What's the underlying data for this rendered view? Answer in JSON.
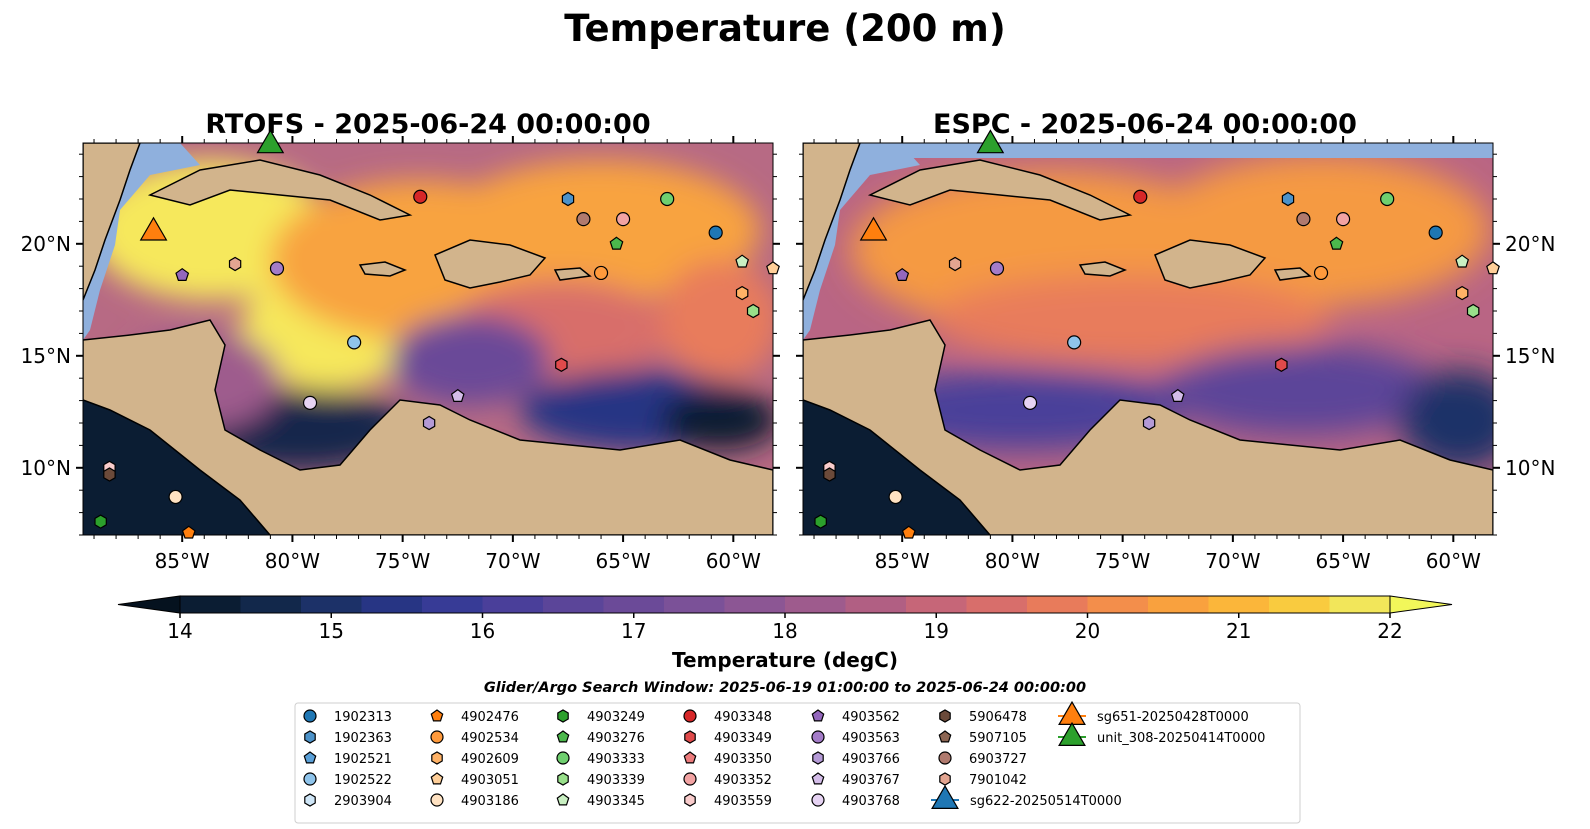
{
  "figure": {
    "suptitle": "Temperature (200 m)",
    "colorbar_label": "Temperature (degC)",
    "search_window": "Glider/Argo Search Window: 2025-06-19 01:00:00 to 2025-06-24 00:00:00"
  },
  "chart_data": {
    "type": "heatmap",
    "panels": [
      {
        "title": "RTOFS - 2025-06-24 00:00:00"
      },
      {
        "title": "ESPC - 2025-06-24 00:00:00"
      }
    ],
    "lon_range": [
      -89.5,
      -58.2
    ],
    "lat_range": [
      7.0,
      24.5
    ],
    "lon_ticks": [
      "85°W",
      "80°W",
      "75°W",
      "70°W",
      "65°W",
      "60°W"
    ],
    "lon_tick_values": [
      -85,
      -80,
      -75,
      -70,
      -65,
      -60
    ],
    "lat_ticks": [
      "10°N",
      "15°N",
      "20°N"
    ],
    "lat_tick_values": [
      10,
      15,
      20
    ],
    "colorbar": {
      "vmin": 14,
      "vmax": 22,
      "step": 0.5,
      "extend": "both",
      "tick_labels": [
        "14",
        "15",
        "16",
        "17",
        "18",
        "19",
        "20",
        "21",
        "22"
      ],
      "colors": [
        "#0b1d33",
        "#12284b",
        "#1c3168",
        "#273584",
        "#373b96",
        "#4a3f9a",
        "#5b4599",
        "#6b4a98",
        "#7b5198",
        "#8c5694",
        "#9e5b8d",
        "#b15f83",
        "#c66678",
        "#d86e6b",
        "#e87b5b",
        "#f38e4b",
        "#f9a13e",
        "#fbb63a",
        "#f9cb3f",
        "#f2e65a"
      ],
      "under_color": "#05121f",
      "over_color": "#f2f75a"
    },
    "floats": [
      {
        "name": "1902313",
        "marker": "circle",
        "color": "#1f77b4",
        "lon": -60.8,
        "lat": 20.5
      },
      {
        "name": "1902363",
        "marker": "hexagon",
        "color": "#4c92c9",
        "lon": -67.5,
        "lat": 22.0
      },
      {
        "name": "1902521",
        "marker": "pentagon",
        "color": "#5aa0d8",
        "lon": null,
        "lat": null
      },
      {
        "name": "1902522",
        "marker": "circle",
        "color": "#8fc4eb",
        "lon": -77.2,
        "lat": 15.6
      },
      {
        "name": "2903904",
        "marker": "hexagon",
        "color": "#cfe6f7",
        "lon": null,
        "lat": null
      },
      {
        "name": "4902476",
        "marker": "pentagon",
        "color": "#ff7f0e",
        "lon": -84.7,
        "lat": 7.1
      },
      {
        "name": "4902534",
        "marker": "circle",
        "color": "#ff9a3c",
        "lon": -66.0,
        "lat": 18.7
      },
      {
        "name": "4902609",
        "marker": "hexagon",
        "color": "#ffb266",
        "lon": -59.6,
        "lat": 17.8
      },
      {
        "name": "4903051",
        "marker": "pentagon",
        "color": "#ffcf99",
        "lon": -58.2,
        "lat": 18.9
      },
      {
        "name": "4903186",
        "marker": "circle",
        "color": "#ffe2c2",
        "lon": -85.3,
        "lat": 8.7
      },
      {
        "name": "4903249",
        "marker": "hexagon",
        "color": "#2ca02c",
        "lon": -88.7,
        "lat": 7.6
      },
      {
        "name": "4903276",
        "marker": "pentagon",
        "color": "#4cb84c",
        "lon": -65.3,
        "lat": 20.0
      },
      {
        "name": "4903333",
        "marker": "circle",
        "color": "#6fcf6f",
        "lon": -63.0,
        "lat": 22.0
      },
      {
        "name": "4903339",
        "marker": "hexagon",
        "color": "#98df8a",
        "lon": -59.1,
        "lat": 17.0
      },
      {
        "name": "4903345",
        "marker": "pentagon",
        "color": "#c9f0c2",
        "lon": -59.6,
        "lat": 19.2
      },
      {
        "name": "4903348",
        "marker": "circle",
        "color": "#d62728",
        "lon": -74.2,
        "lat": 22.1
      },
      {
        "name": "4903349",
        "marker": "hexagon",
        "color": "#e04a4b",
        "lon": -67.8,
        "lat": 14.6
      },
      {
        "name": "4903350",
        "marker": "pentagon",
        "color": "#ec7b7c",
        "lon": null,
        "lat": null
      },
      {
        "name": "4903352",
        "marker": "circle",
        "color": "#f2a3a3",
        "lon": -65.0,
        "lat": 21.1
      },
      {
        "name": "4903559",
        "marker": "hexagon",
        "color": "#f9cccc",
        "lon": -88.3,
        "lat": 10.0
      },
      {
        "name": "4903562",
        "marker": "pentagon",
        "color": "#9467bd",
        "lon": -85.0,
        "lat": 18.6
      },
      {
        "name": "4903563",
        "marker": "circle",
        "color": "#a47cc8",
        "lon": -80.7,
        "lat": 18.9
      },
      {
        "name": "4903766",
        "marker": "hexagon",
        "color": "#b49ad6",
        "lon": -73.8,
        "lat": 12.0
      },
      {
        "name": "4903767",
        "marker": "pentagon",
        "color": "#d4bde9",
        "lon": -72.5,
        "lat": 13.2
      },
      {
        "name": "4903768",
        "marker": "circle",
        "color": "#e6d3f3",
        "lon": -79.2,
        "lat": 12.9
      },
      {
        "name": "5906478",
        "marker": "hexagon",
        "color": "#6b4a3a",
        "lon": -88.3,
        "lat": 9.7
      },
      {
        "name": "5907105",
        "marker": "pentagon",
        "color": "#8c6552",
        "lon": null,
        "lat": null
      },
      {
        "name": "6903727",
        "marker": "circle",
        "color": "#b07a6e",
        "lon": -66.8,
        "lat": 21.1
      },
      {
        "name": "7901042",
        "marker": "hexagon",
        "color": "#e3a591",
        "lon": -82.6,
        "lat": 19.1
      },
      {
        "name": "sg622-20250514T0000",
        "marker": "triangle",
        "color": "#1f77b4",
        "lon": null,
        "lat": null
      },
      {
        "name": "sg651-20250428T0000",
        "marker": "triangle",
        "color": "#ff7f0e",
        "lon": -86.3,
        "lat": 20.5
      },
      {
        "name": "unit_308-20250414T0000",
        "marker": "triangle",
        "color": "#2ca02c",
        "lon": -81.0,
        "lat": 24.4
      }
    ]
  }
}
